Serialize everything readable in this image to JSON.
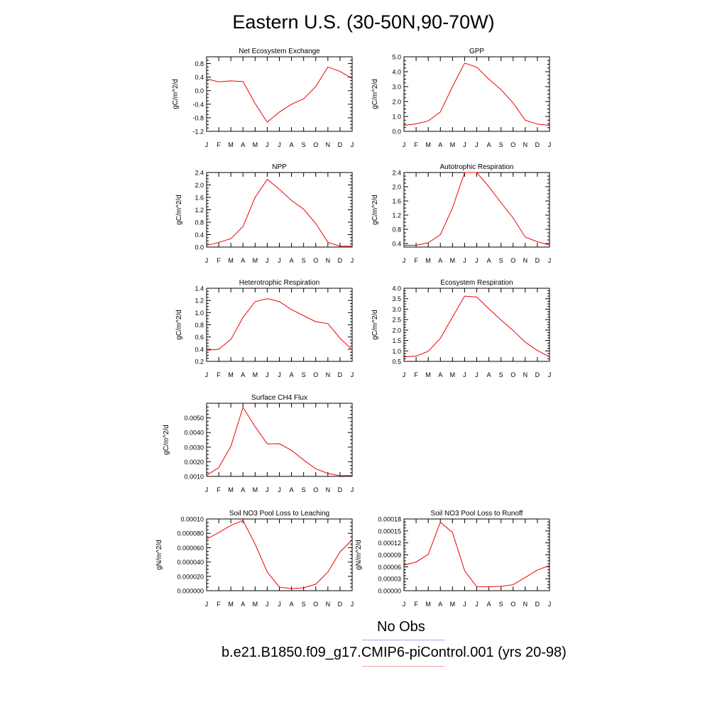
{
  "page": {
    "title": "Eastern U.S. (30-50N,90-70W)"
  },
  "legend": {
    "items": [
      {
        "label": "No Obs",
        "color": "#9aa6ee"
      },
      {
        "label": "b.e21.B1850.f09_g17.CMIP6-piControl.001 (yrs 20-98)",
        "color": "#f4a3a3"
      }
    ]
  },
  "chart_data": [
    {
      "type": "line",
      "title": "Net Ecosystem Exchange",
      "ylabel": "gC/m^2/d",
      "categories": [
        "J",
        "F",
        "M",
        "A",
        "M",
        "J",
        "J",
        "A",
        "S",
        "O",
        "N",
        "D",
        "J"
      ],
      "ylim": [
        -1.2,
        1.0
      ],
      "yticks": [
        "0.8",
        "0.4",
        "0.0",
        "-0.4",
        "-0.8",
        "-1.2"
      ],
      "series": [
        {
          "color": "#ee0000",
          "values": [
            0.35,
            0.26,
            0.29,
            0.27,
            -0.38,
            -0.93,
            -0.63,
            -0.4,
            -0.24,
            0.12,
            0.7,
            0.57,
            0.36
          ]
        }
      ]
    },
    {
      "type": "line",
      "title": "GPP",
      "ylabel": "gC/m^2/d",
      "categories": [
        "J",
        "F",
        "M",
        "A",
        "M",
        "J",
        "J",
        "A",
        "S",
        "O",
        "N",
        "D",
        "J"
      ],
      "ylim": [
        0,
        5
      ],
      "yticks": [
        "5.0",
        "4.0",
        "3.0",
        "2.0",
        "1.0",
        "0.0"
      ],
      "series": [
        {
          "color": "#ee0000",
          "values": [
            0.4,
            0.5,
            0.7,
            1.3,
            3.0,
            4.58,
            4.3,
            3.5,
            2.8,
            1.9,
            0.75,
            0.48,
            0.4
          ]
        }
      ]
    },
    {
      "type": "line",
      "title": "NPP",
      "ylabel": "gC/m^2/d",
      "categories": [
        "J",
        "F",
        "M",
        "A",
        "M",
        "J",
        "J",
        "A",
        "S",
        "O",
        "N",
        "D",
        "J"
      ],
      "ylim": [
        0,
        2.4
      ],
      "yticks": [
        "2.4",
        "2.0",
        "1.6",
        "1.2",
        "0.8",
        "0.4",
        "0.0"
      ],
      "series": [
        {
          "color": "#ee0000",
          "values": [
            0.05,
            0.15,
            0.27,
            0.66,
            1.6,
            2.18,
            1.86,
            1.5,
            1.22,
            0.76,
            0.15,
            0.03,
            0.03
          ]
        }
      ]
    },
    {
      "type": "line",
      "title": "Autotrophic Respiration",
      "ylabel": "gC/m^2/d",
      "categories": [
        "J",
        "F",
        "M",
        "A",
        "M",
        "J",
        "J",
        "A",
        "S",
        "O",
        "N",
        "D",
        "J"
      ],
      "ylim": [
        0.3,
        2.4
      ],
      "yticks": [
        "2.4",
        "2.0",
        "1.6",
        "1.2",
        "0.8",
        "0.4"
      ],
      "series": [
        {
          "color": "#ee0000",
          "values": [
            0.35,
            0.35,
            0.42,
            0.65,
            1.4,
            2.4,
            2.4,
            2.0,
            1.55,
            1.12,
            0.58,
            0.45,
            0.36
          ]
        }
      ]
    },
    {
      "type": "line",
      "title": "Heterotrophic Respiration",
      "ylabel": "gC/m^2/d",
      "categories": [
        "J",
        "F",
        "M",
        "A",
        "M",
        "J",
        "J",
        "A",
        "S",
        "O",
        "N",
        "D",
        "J"
      ],
      "ylim": [
        0.2,
        1.4
      ],
      "yticks": [
        "1.4",
        "1.2",
        "1.0",
        "0.8",
        "0.6",
        "0.4",
        "0.2"
      ],
      "series": [
        {
          "color": "#ee0000",
          "values": [
            0.38,
            0.4,
            0.56,
            0.92,
            1.18,
            1.23,
            1.18,
            1.05,
            0.95,
            0.85,
            0.82,
            0.58,
            0.39
          ]
        }
      ]
    },
    {
      "type": "line",
      "title": "Ecosystem Respiration",
      "ylabel": "gC/m^2/d",
      "categories": [
        "J",
        "F",
        "M",
        "A",
        "M",
        "J",
        "J",
        "A",
        "S",
        "O",
        "N",
        "D",
        "J"
      ],
      "ylim": [
        0.5,
        4.0
      ],
      "yticks": [
        "4.0",
        "3.5",
        "3.0",
        "2.5",
        "2.0",
        "1.5",
        "1.0",
        "0.5"
      ],
      "series": [
        {
          "color": "#ee0000",
          "values": [
            0.72,
            0.75,
            0.98,
            1.6,
            2.62,
            3.62,
            3.58,
            3.02,
            2.48,
            1.98,
            1.42,
            1.02,
            0.72
          ]
        }
      ]
    },
    {
      "type": "line",
      "title": "Surface CH4 Flux",
      "ylabel": "gC/m^2/d",
      "categories": [
        "J",
        "F",
        "M",
        "A",
        "M",
        "J",
        "J",
        "A",
        "S",
        "O",
        "N",
        "D",
        "J"
      ],
      "ylim": [
        0.001,
        0.006
      ],
      "yticks": [
        "0.0050",
        "0.0040",
        "0.0030",
        "0.0020",
        "0.0010"
      ],
      "series": [
        {
          "color": "#ee0000",
          "values": [
            0.00107,
            0.0016,
            0.00305,
            0.00572,
            0.0044,
            0.00322,
            0.00323,
            0.00278,
            0.00212,
            0.00152,
            0.0012,
            0.00105,
            0.00106
          ]
        }
      ]
    },
    {
      "type": "line",
      "title": "Soil NO3 Pool Loss to Leaching",
      "ylabel": "gN/m^2/d",
      "categories": [
        "J",
        "F",
        "M",
        "A",
        "M",
        "J",
        "J",
        "A",
        "S",
        "O",
        "N",
        "D",
        "J"
      ],
      "ylim": [
        0,
        0.0001
      ],
      "yticks": [
        "0.00010",
        "0.000080",
        "0.000060",
        "0.000040",
        "0.000020",
        "0.000000"
      ],
      "series": [
        {
          "color": "#ee0000",
          "values": [
            7.2e-05,
            8.1e-05,
            9.1e-05,
            9.8e-05,
            6.5e-05,
            2.6e-05,
            5e-06,
            3e-06,
            4e-06,
            9e-06,
            2.6e-05,
            5.4e-05,
            7.1e-05
          ]
        }
      ]
    },
    {
      "type": "line",
      "title": "Soil NO3 Pool Loss to Runoff",
      "ylabel": "gN/m^2/d",
      "categories": [
        "J",
        "F",
        "M",
        "A",
        "M",
        "J",
        "J",
        "A",
        "S",
        "O",
        "N",
        "D",
        "J"
      ],
      "ylim": [
        0,
        0.00018
      ],
      "yticks": [
        "0.00018",
        "0.00015",
        "0.00012",
        "0.00009",
        "0.00006",
        "0.00003",
        "0.00000"
      ],
      "series": [
        {
          "color": "#ee0000",
          "values": [
            6.4e-05,
            7.2e-05,
            9.1e-05,
            0.000172,
            0.000146,
            5e-05,
            1e-05,
            1e-05,
            1.1e-05,
            1.5e-05,
            3.3e-05,
            5.2e-05,
            6.3e-05
          ]
        }
      ]
    }
  ]
}
